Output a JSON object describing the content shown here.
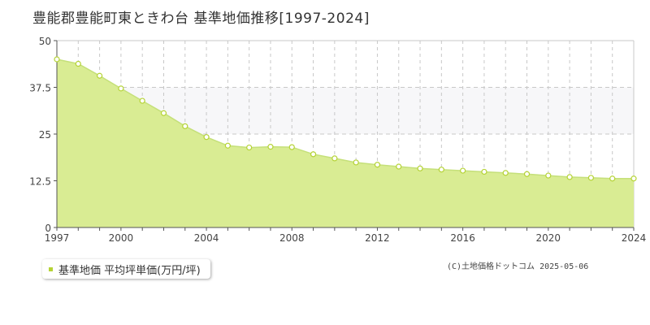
{
  "title": "豊能郡豊能町東ときわ台 基準地価推移[1997-2024]",
  "legend": {
    "label": "基準地価 平均坪単価(万円/坪)"
  },
  "copyright": "(C)土地価格ドットコム 2025-05-06",
  "colors": {
    "line": "#c5e07a",
    "fill": "#d9ec93",
    "band": "#f7f7f9",
    "grid": "#c8c8c8",
    "marker": "#b5d335"
  },
  "chart_data": {
    "type": "area",
    "title": "豊能郡豊能町東ときわ台 基準地価推移[1997-2024]",
    "xlabel": "",
    "ylabel": "",
    "x": [
      1997,
      1998,
      1999,
      2000,
      2001,
      2002,
      2003,
      2004,
      2005,
      2006,
      2007,
      2008,
      2009,
      2010,
      2011,
      2012,
      2013,
      2014,
      2015,
      2016,
      2017,
      2018,
      2019,
      2020,
      2021,
      2022,
      2023,
      2024
    ],
    "series": [
      {
        "name": "基準地価 平均坪単価(万円/坪)",
        "values": [
          45.0,
          43.8,
          40.6,
          37.2,
          33.9,
          30.6,
          27.1,
          24.2,
          21.9,
          21.4,
          21.6,
          21.5,
          19.6,
          18.5,
          17.4,
          16.8,
          16.3,
          15.8,
          15.5,
          15.2,
          14.9,
          14.6,
          14.3,
          13.9,
          13.5,
          13.3,
          13.1,
          13.1
        ]
      }
    ],
    "xlim": [
      1997,
      2024
    ],
    "ylim": [
      0,
      50
    ],
    "x_ticks": [
      "1997",
      "2000",
      "2004",
      "2008",
      "2012",
      "2016",
      "2020",
      "2024"
    ],
    "y_ticks": [
      "0",
      "12.5",
      "25",
      "37.5",
      "50"
    ],
    "grid": true,
    "legend_position": "bottom-left"
  }
}
